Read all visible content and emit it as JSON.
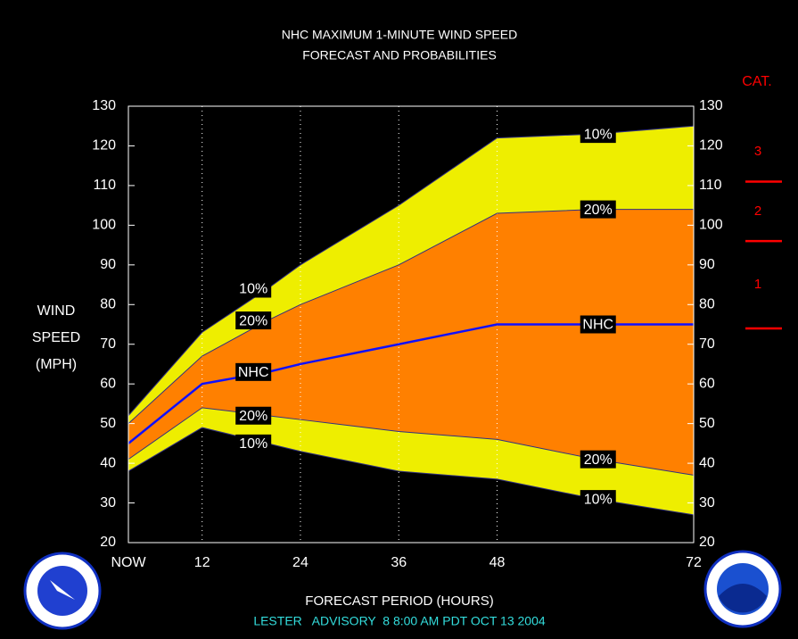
{
  "chart_data": {
    "type": "area",
    "title": "NHC MAXIMUM 1-MINUTE WIND SPEED",
    "subtitle": "FORECAST AND PROBABILITIES",
    "y_label": [
      "WIND",
      "SPEED",
      "(MPH)"
    ],
    "x_label": "FORECAST PERIOD (HOURS)",
    "footer": "LESTER   ADVISORY  8 8:00 AM PDT OCT 13 2004",
    "x": [
      3,
      12,
      20,
      24,
      36,
      48,
      60,
      72
    ],
    "xlim": [
      3,
      72
    ],
    "xticks": [
      {
        "value": 3,
        "label": "NOW"
      },
      12,
      24,
      36,
      48,
      72
    ],
    "ylim": [
      20,
      130
    ],
    "yticks": [
      20,
      30,
      40,
      50,
      60,
      70,
      80,
      90,
      100,
      110,
      120,
      130
    ],
    "series": [
      {
        "name": "10%",
        "color": "#eeee00",
        "values": [
          52,
          73,
          84,
          90,
          105,
          122,
          123,
          125
        ]
      },
      {
        "name": "20%",
        "color": "#ff8000",
        "values": [
          50,
          67,
          76,
          80,
          90,
          103,
          104,
          104
        ]
      },
      {
        "name": "NHC",
        "color": "#1010ff",
        "values": [
          45,
          60,
          63,
          65,
          70,
          75,
          75,
          75
        ]
      },
      {
        "name": "20%",
        "color": "#ff8000",
        "values": [
          41,
          54,
          52,
          51,
          48,
          46,
          41,
          37
        ]
      },
      {
        "name": "10%",
        "color": "#eeee00",
        "values": [
          38,
          49,
          45,
          43,
          38,
          36,
          31,
          27
        ]
      }
    ],
    "category_scale": {
      "title": "CAT.",
      "color": "#ff0000",
      "thresholds": [
        74,
        96,
        111
      ],
      "labels": [
        "1",
        "2",
        "3"
      ]
    }
  }
}
